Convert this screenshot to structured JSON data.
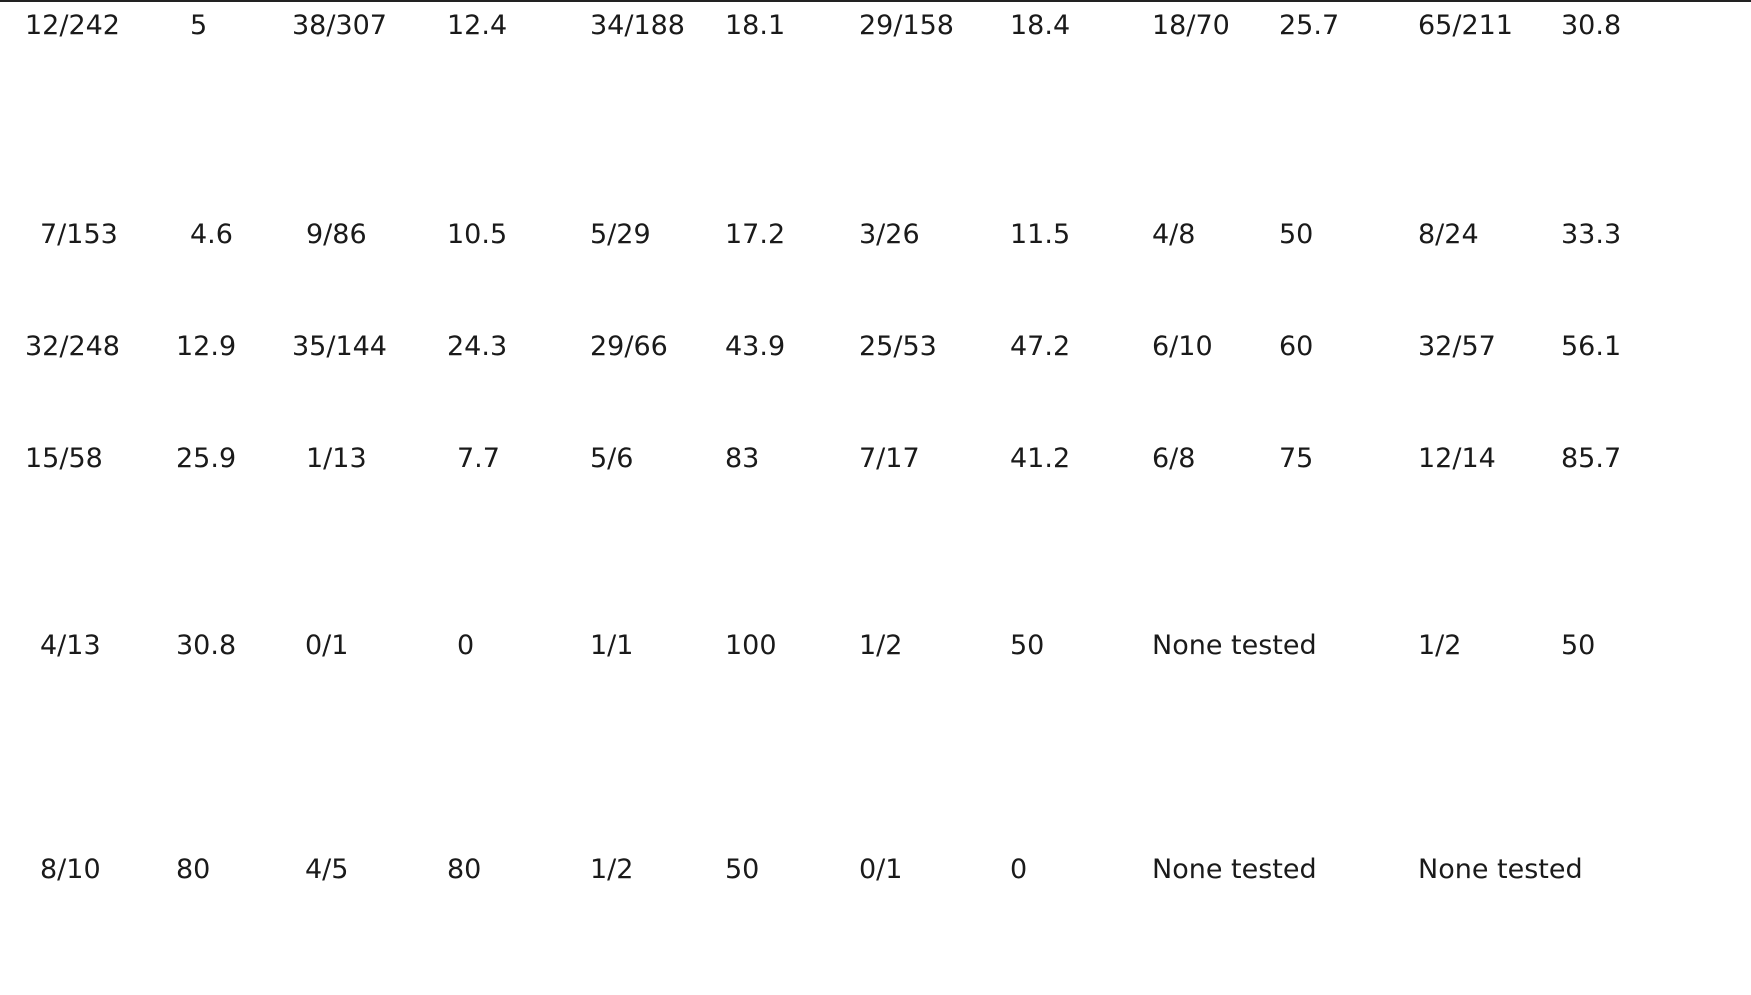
{
  "table": {
    "rows": [
      [
        "12/242",
        "5",
        "38/307",
        "12.4",
        "34/188",
        "18.1",
        "29/158",
        "18.4",
        "18/70",
        "25.7",
        "65/211",
        "30.8"
      ],
      [
        "7/153",
        "4.6",
        "9/86",
        "10.5",
        "5/29",
        "17.2",
        "3/26",
        "11.5",
        "4/8",
        "50",
        "8/24",
        "33.3"
      ],
      [
        "32/248",
        "12.9",
        "35/144",
        "24.3",
        "29/66",
        "43.9",
        "25/53",
        "47.2",
        "6/10",
        "60",
        "32/57",
        "56.1"
      ],
      [
        "15/58",
        "25.9",
        "1/13",
        "7.7",
        "5/6",
        "83",
        "7/17",
        "41.2",
        "6/8",
        "75",
        "12/14",
        "85.7"
      ],
      [
        "4/13",
        "30.8",
        "0/1",
        "0",
        "1/1",
        "100",
        "1/2",
        "50",
        "None tested",
        "1/2",
        "50"
      ],
      [
        "8/10",
        "80",
        "4/5",
        "80",
        "1/2",
        "50",
        "0/1",
        "0",
        "None tested",
        "None tested"
      ]
    ]
  }
}
